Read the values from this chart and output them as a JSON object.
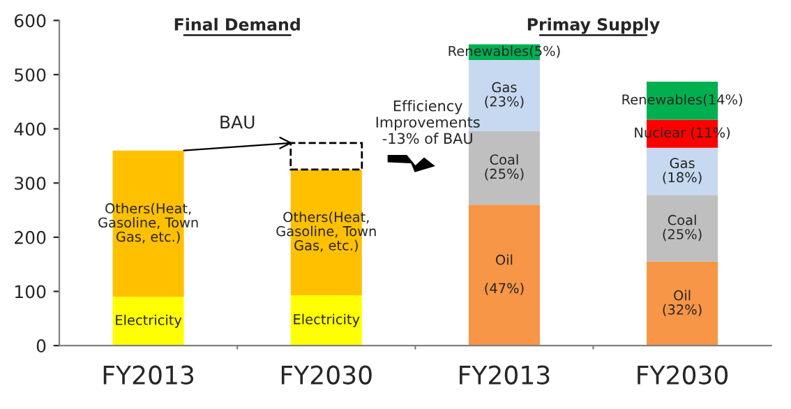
{
  "chart_data": {
    "type": "bar",
    "stacked": true,
    "categories": [
      "FY2013",
      "FY2030",
      "FY2013",
      "FY2030"
    ],
    "series": [
      {
        "color": "#ffff00",
        "values": [
          90,
          93,
          null,
          null
        ],
        "value_labels": [
          "Electricity",
          "Electricity",
          null,
          null
        ]
      },
      {
        "color": "#ffc000",
        "values": [
          270,
          232,
          null,
          null
        ],
        "value_labels": [
          "Others(Heat,\nGasoline, Town\nGas, etc.)",
          "Others(Heat,\nGasoline, Town\nGas, etc.)",
          null,
          null
        ]
      },
      {
        "color": "#ffffff",
        "line_style": "dashed",
        "values": [
          null,
          49,
          null,
          null
        ]
      },
      {
        "color": "#f79646",
        "values": [
          null,
          null,
          260,
          155
        ]
      },
      {
        "color": "#bfbfbf",
        "values": [
          null,
          null,
          136,
          123
        ]
      },
      {
        "color": "#c6d9f1",
        "values": [
          null,
          null,
          131,
          87
        ]
      },
      {
        "color": "#ff0000",
        "values": [
          null,
          null,
          null,
          52
        ]
      },
      {
        "color": "#00b050",
        "values": [
          null,
          null,
          29,
          70
        ]
      }
    ],
    "ylim": [
      0,
      600
    ],
    "yticks": [
      0,
      100,
      200,
      300,
      400,
      500,
      600
    ],
    "grid": false,
    "legend": false,
    "annotations": [
      "Final Demand",
      "Primay Supply",
      "BAU",
      "Efficiency\nImprovements\n-13% of BAU",
      "Oil\n\n(47%)",
      "Coal\n(25%)",
      "Gas\n(23%)",
      "Renewables(5%)",
      "Oil\n(32%)",
      "Coal\n(25%)",
      "Gas\n(18%)",
      "Nuclear (11%)",
      "Renewables(14%)"
    ]
  }
}
